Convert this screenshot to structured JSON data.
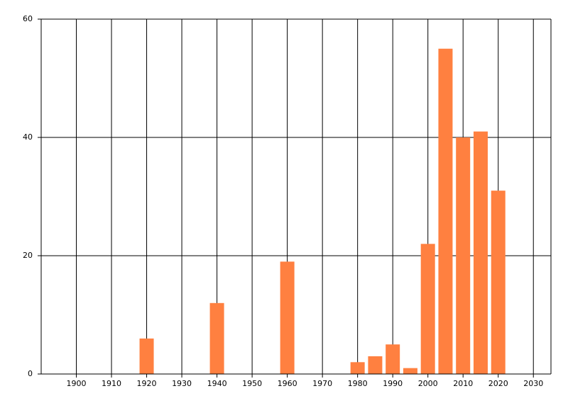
{
  "chart_data": {
    "type": "bar",
    "x": [
      1920,
      1940,
      1960,
      1980,
      1985,
      1990,
      1995,
      2000,
      2005,
      2010,
      2015,
      2020
    ],
    "values": [
      6,
      12,
      19,
      2,
      3,
      5,
      1,
      22,
      55,
      40,
      41,
      31
    ],
    "color": "#ff8040",
    "xlim": [
      1890,
      2035
    ],
    "xticks": [
      1900,
      1910,
      1920,
      1930,
      1940,
      1950,
      1960,
      1970,
      1980,
      1990,
      2000,
      2010,
      2020,
      2030
    ],
    "ylim": [
      0,
      60
    ],
    "yticks": [
      0,
      20,
      40,
      60
    ],
    "grid": true
  }
}
